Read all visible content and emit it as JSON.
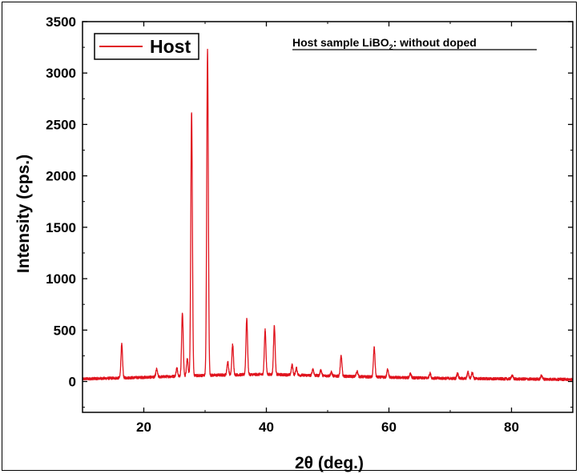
{
  "chart_data": {
    "type": "line",
    "title": "",
    "xlabel": "2θ (deg.)",
    "ylabel": "Intensity (cps.)",
    "xlim": [
      10,
      90
    ],
    "ylim": [
      -300,
      3500
    ],
    "xticks": [
      20,
      40,
      60,
      80
    ],
    "yticks": [
      0,
      500,
      1000,
      1500,
      2000,
      2500,
      3000,
      3500
    ],
    "legend": {
      "position": "top-left",
      "entries": [
        "Host"
      ]
    },
    "annotation": {
      "main": "Host sample LiBO",
      "sub": "2",
      "tail": ": without doped",
      "underlined": true,
      "position": "top-right"
    },
    "grid": false,
    "series": [
      {
        "name": "Host",
        "color": "#e0141e",
        "baseline": [
          [
            10,
            25
          ],
          [
            20,
            40
          ],
          [
            30,
            60
          ],
          [
            40,
            70
          ],
          [
            50,
            55
          ],
          [
            60,
            40
          ],
          [
            70,
            30
          ],
          [
            80,
            25
          ],
          [
            90,
            20
          ]
        ],
        "peaks": [
          {
            "x": 16.4,
            "y": 360
          },
          {
            "x": 22.1,
            "y": 120
          },
          {
            "x": 25.4,
            "y": 130
          },
          {
            "x": 26.3,
            "y": 670
          },
          {
            "x": 27.1,
            "y": 220
          },
          {
            "x": 27.8,
            "y": 2620
          },
          {
            "x": 30.4,
            "y": 3220
          },
          {
            "x": 33.7,
            "y": 190
          },
          {
            "x": 34.5,
            "y": 360
          },
          {
            "x": 36.8,
            "y": 610
          },
          {
            "x": 39.8,
            "y": 500
          },
          {
            "x": 41.3,
            "y": 540
          },
          {
            "x": 44.2,
            "y": 160
          },
          {
            "x": 44.9,
            "y": 130
          },
          {
            "x": 47.6,
            "y": 120
          },
          {
            "x": 48.9,
            "y": 110
          },
          {
            "x": 50.6,
            "y": 90
          },
          {
            "x": 52.2,
            "y": 250
          },
          {
            "x": 54.8,
            "y": 100
          },
          {
            "x": 57.6,
            "y": 330
          },
          {
            "x": 59.8,
            "y": 120
          },
          {
            "x": 63.5,
            "y": 80
          },
          {
            "x": 66.7,
            "y": 80
          },
          {
            "x": 71.2,
            "y": 80
          },
          {
            "x": 72.9,
            "y": 90
          },
          {
            "x": 73.6,
            "y": 90
          },
          {
            "x": 80.1,
            "y": 60
          },
          {
            "x": 84.9,
            "y": 60
          }
        ]
      }
    ]
  }
}
